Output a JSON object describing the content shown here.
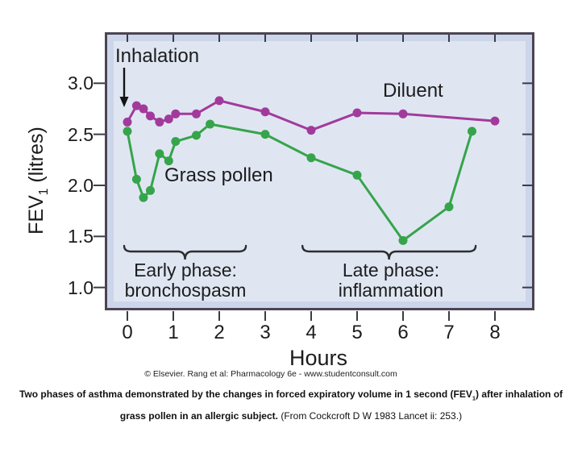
{
  "figure": {
    "y_axis": {
      "title_main": "FEV",
      "title_sub": "1",
      "title_rest": " (litres)"
    },
    "x_axis": {
      "title": "Hours"
    },
    "annotations": {
      "inhalation": "Inhalation",
      "diluent": "Diluent",
      "grass_pollen": "Grass pollen"
    },
    "braces": [
      {
        "label_line1": "Early phase:",
        "label_line2": "bronchospasm",
        "x_from_h": -0.07,
        "x_to_h": 2.58
      },
      {
        "label_line1": "Late phase:",
        "label_line2": "inflammation",
        "x_from_h": 3.81,
        "x_to_h": 7.58
      }
    ],
    "credit": "© Elsevier. Rang et al: Pharmacology 6e - www.studentconsult.com",
    "caption": {
      "bold_part1": "Two phases of asthma demonstrated by the changes in forced expiratory volume in 1 second (FEV",
      "subscript": "1",
      "bold_part2": ") after inhalation of grass pollen in an allergic subject.",
      "regular_part": " (From Cockcroft D W 1983 Lancet ii: 253.)"
    },
    "colors": {
      "plot_bg": "#dfe6f2",
      "margin_bg": "#cdd5ea",
      "frame_border": "#4a4454",
      "tick": "#3e3a47",
      "diluent": "#a23a9c",
      "grass_pollen": "#36a44b",
      "annotation_ink": "#1c1c1c"
    }
  },
  "chart_data": {
    "type": "line",
    "title": "",
    "xlabel": "Hours",
    "ylabel": "FEV1 (litres)",
    "x_ticks": [
      0,
      1,
      2,
      3,
      4,
      5,
      6,
      7,
      8
    ],
    "y_ticks": [
      3.0,
      2.5,
      2.0,
      1.5,
      1.0
    ],
    "xlim": [
      -0.35,
      8.6
    ],
    "ylim": [
      0.85,
      3.45
    ],
    "grid": false,
    "legend": "inline-labels",
    "series": [
      {
        "name": "Diluent",
        "color": "#a23a9c",
        "x": [
          0,
          0.2,
          0.35,
          0.5,
          0.7,
          0.9,
          1.05,
          1.5,
          2,
          3,
          4,
          5,
          6,
          8
        ],
        "y": [
          2.62,
          2.78,
          2.75,
          2.68,
          2.62,
          2.65,
          2.7,
          2.7,
          2.83,
          2.72,
          2.54,
          2.71,
          2.7,
          2.63
        ]
      },
      {
        "name": "Grass pollen",
        "color": "#36a44b",
        "x": [
          0,
          0.2,
          0.35,
          0.5,
          0.7,
          0.9,
          1.05,
          1.5,
          1.8,
          3,
          4,
          5,
          6,
          7,
          7.5
        ],
        "y": [
          2.53,
          2.06,
          1.88,
          1.95,
          2.31,
          2.24,
          2.43,
          2.49,
          2.6,
          2.5,
          2.27,
          2.1,
          1.46,
          1.79,
          2.53
        ]
      }
    ],
    "annotations": [
      {
        "text": "Inhalation",
        "arrow": true,
        "arrow_points_to_hour": 0
      },
      {
        "text": "Early phase: bronchospasm",
        "span_hours": [
          0,
          2.6
        ]
      },
      {
        "text": "Late phase: inflammation",
        "span_hours": [
          3.8,
          7.6
        ]
      }
    ]
  }
}
